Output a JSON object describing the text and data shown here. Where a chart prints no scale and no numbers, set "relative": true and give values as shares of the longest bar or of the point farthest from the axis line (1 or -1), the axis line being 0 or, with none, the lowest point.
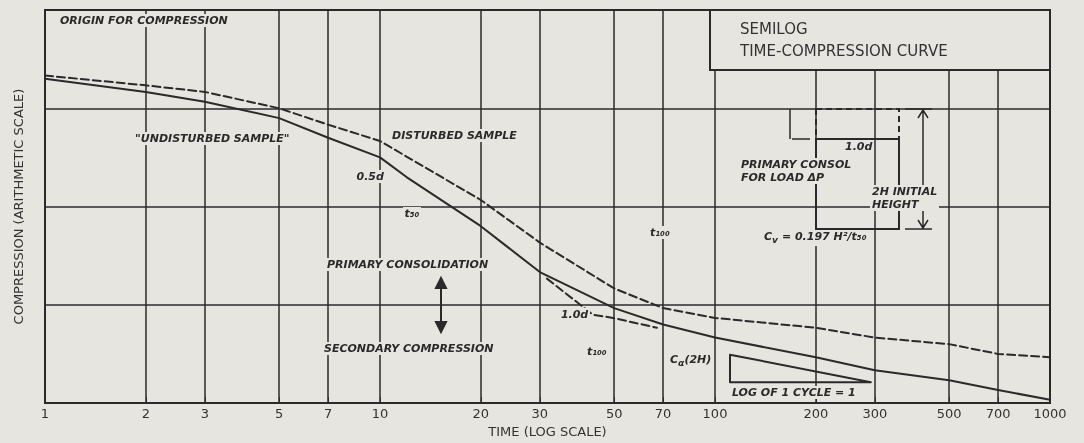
{
  "chart_data": {
    "type": "line",
    "title": "SEMILOG\nTIME-COMPRESSION CURVE",
    "xlabel": "TIME (LOG SCALE)",
    "ylabel": "COMPRESSION (ARITHMETIC SCALE)",
    "relative": true,
    "log": "x",
    "grid": true,
    "marker": "none",
    "tick_labels": "x",
    "xlim": [
      1,
      1000
    ],
    "xticks": [
      1,
      2,
      3,
      5,
      7,
      10,
      20,
      30,
      50,
      70,
      100,
      200,
      300,
      500,
      700,
      1000
    ],
    "series": [
      {
        "name": "\"UNDISTURBED SAMPLE\"",
        "color": "#2a2a2a",
        "line_style": "solid",
        "x": [
          1,
          2,
          3,
          5,
          7,
          10,
          12,
          20,
          30,
          50,
          70,
          100,
          200,
          300,
          500,
          700,
          1000
        ],
        "values": [
          0.99,
          0.95,
          0.92,
          0.87,
          0.81,
          0.75,
          0.69,
          0.54,
          0.4,
          0.29,
          0.24,
          0.2,
          0.14,
          0.1,
          0.07,
          0.04,
          0.01
        ]
      },
      {
        "name": "DISTURBED SAMPLE",
        "color": "#2a2a2a",
        "line_style": "dashed",
        "x": [
          1,
          2,
          3,
          5,
          7,
          10,
          20,
          30,
          50,
          70,
          100,
          200,
          300,
          500,
          700,
          1000
        ],
        "values": [
          1.0,
          0.97,
          0.95,
          0.9,
          0.85,
          0.8,
          0.62,
          0.49,
          0.35,
          0.29,
          0.26,
          0.23,
          0.2,
          0.18,
          0.15,
          0.14
        ]
      },
      {
        "color": "#2a2a2a",
        "line_style": "dashed",
        "x": [
          31.5,
          43.2,
          49.6,
          67.1
        ],
        "values": [
          0.38,
          0.27,
          0.26,
          0.23
        ]
      }
    ],
    "annotations": [
      "ORIGIN FOR COMPRESSION",
      {
        "text": "0.5d",
        "x": 12,
        "y": 0.69
      },
      "t₅₀",
      "PRIMARY CONSOLIDATION",
      "SECONDARY COMPRESSION",
      {
        "text": "1.0d",
        "x": 43.2,
        "y": 0.27
      },
      "t₁₀₀",
      "t₁₀₀",
      "C$_{α}$(2H)",
      "LOG OF 1 CYCLE = 1",
      "1.0d",
      "PRIMARY CONSOL\nFOR LOAD ΔP",
      "2H INITIAL\nHEIGHT",
      "C$_{v}$ = 0.197 H²/t₅₀"
    ]
  }
}
